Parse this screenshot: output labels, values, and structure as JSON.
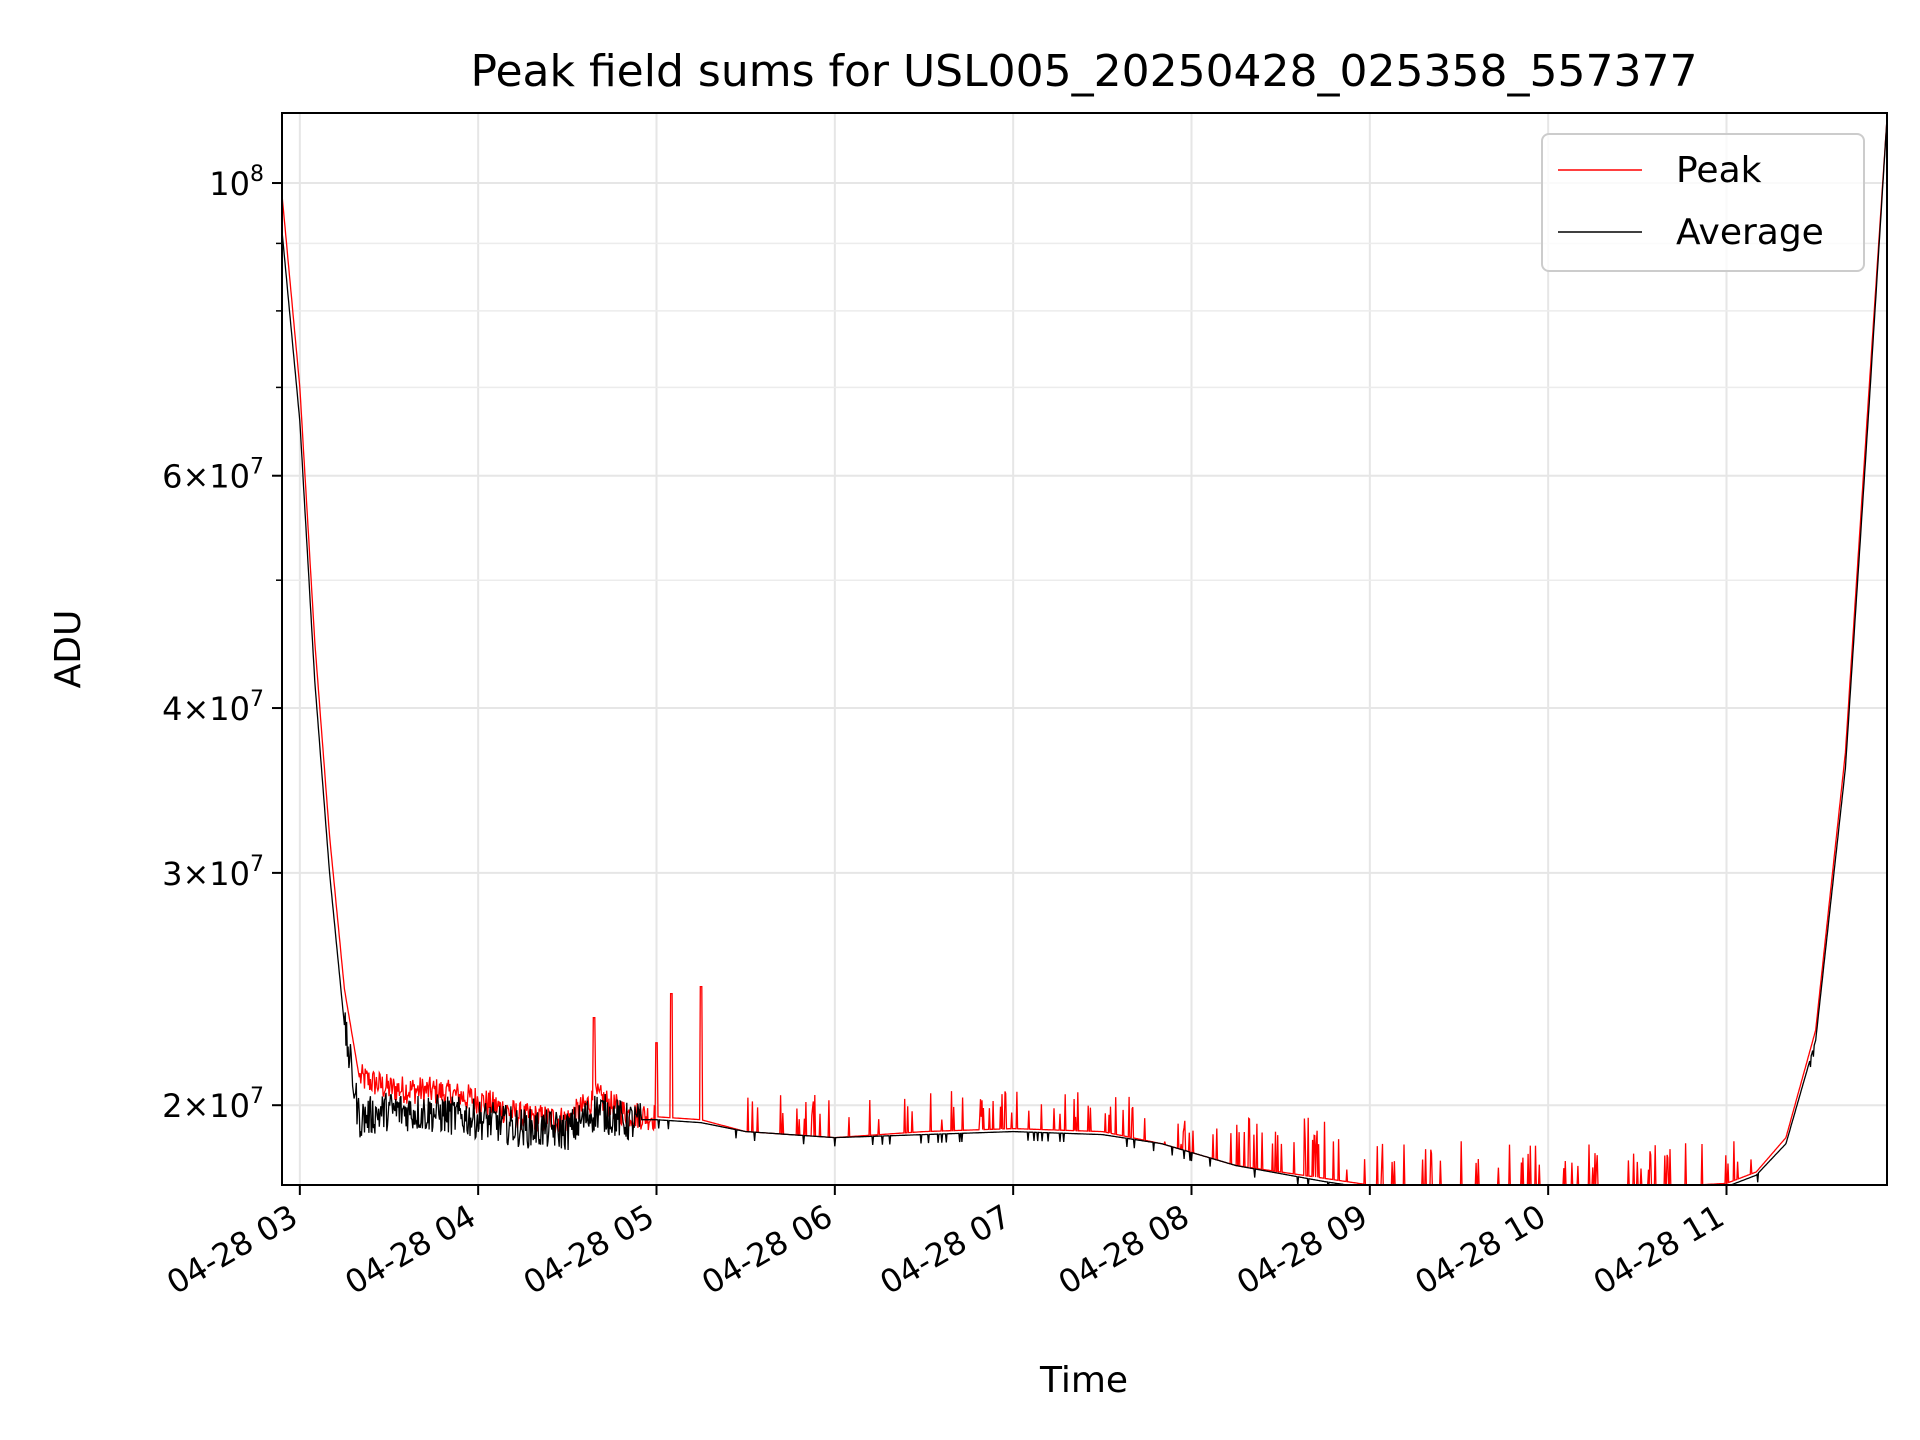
{
  "chart_data": {
    "type": "line",
    "title": "Peak field sums for USL005_20250428_025358_557377",
    "xlabel": "Time",
    "ylabel": "ADU",
    "yscale": "log",
    "grid": true,
    "legend_position": "top-right",
    "xlim": [
      "04-28 02:54",
      "04-28 11:54"
    ],
    "ylim": [
      17400000,
      113000000
    ],
    "x_ticks": [
      "04-28 03",
      "04-28 04",
      "04-28 05",
      "04-28 06",
      "04-28 07",
      "04-28 08",
      "04-28 09",
      "04-28 10",
      "04-28 11"
    ],
    "y_ticks": [
      {
        "value": 100000000,
        "mantissa": "",
        "exponent": "8"
      },
      {
        "value": 60000000,
        "mantissa": "6",
        "exponent": "7"
      },
      {
        "value": 40000000,
        "mantissa": "4",
        "exponent": "7"
      },
      {
        "value": 30000000,
        "mantissa": "3",
        "exponent": "7"
      },
      {
        "value": 20000000,
        "mantissa": "2",
        "exponent": "7"
      }
    ],
    "minor_y_ticks": [
      50000000,
      70000000,
      80000000,
      90000000
    ],
    "series": [
      {
        "name": "Peak",
        "color": "#ff0000",
        "x": [
          "04-28 02:54",
          "04-28 03:00",
          "04-28 03:05",
          "04-28 03:10",
          "04-28 03:15",
          "04-28 03:20",
          "04-28 03:30",
          "04-28 03:45",
          "04-28 04:00",
          "04-28 04:15",
          "04-28 04:30",
          "04-28 04:40",
          "04-28 04:50",
          "04-28 05:00",
          "04-28 05:15",
          "04-28 05:30",
          "04-28 06:00",
          "04-28 06:30",
          "04-28 07:00",
          "04-28 07:30",
          "04-28 07:50",
          "04-28 08:15",
          "04-28 08:45",
          "04-28 09:00",
          "04-28 09:30",
          "04-28 10:00",
          "04-28 10:30",
          "04-28 10:50",
          "04-28 11:00",
          "04-28 11:10",
          "04-28 11:20",
          "04-28 11:30",
          "04-28 11:40",
          "04-28 11:48",
          "04-28 11:54"
        ],
        "values": [
          98000000,
          70000000,
          45000000,
          32000000,
          24500000,
          21000000,
          20600000,
          20500000,
          20200000,
          19600000,
          19500000,
          20300000,
          19700000,
          19600000,
          19500000,
          19100000,
          18900000,
          19100000,
          19200000,
          19100000,
          18700000,
          18000000,
          17600000,
          17400000,
          17400000,
          17400000,
          17400000,
          17400000,
          17450000,
          17800000,
          18900000,
          22800000,
          37000000,
          70000000,
          112000000
        ],
        "spikes": [
          {
            "x": "04-28 04:39",
            "y": 23300000
          },
          {
            "x": "04-28 05:00",
            "y": 22300000
          },
          {
            "x": "04-28 05:05",
            "y": 24300000
          },
          {
            "x": "04-28 05:15",
            "y": 24600000
          }
        ],
        "spike_envelope": [
          {
            "from": "04-28 05:30",
            "to": "04-28 07:50",
            "y": 20500000
          },
          {
            "from": "04-28 07:50",
            "to": "04-28 08:50",
            "y": 19600000
          },
          {
            "from": "04-28 08:50",
            "to": "04-28 11:10",
            "y": 18800000
          }
        ]
      },
      {
        "name": "Average",
        "color": "#000000",
        "x": [
          "04-28 02:54",
          "04-28 03:00",
          "04-28 03:05",
          "04-28 03:10",
          "04-28 03:15",
          "04-28 03:20",
          "04-28 03:30",
          "04-28 03:45",
          "04-28 04:00",
          "04-28 04:15",
          "04-28 04:30",
          "04-28 04:40",
          "04-28 04:50",
          "04-28 05:00",
          "04-28 05:15",
          "04-28 05:30",
          "04-28 06:00",
          "04-28 06:30",
          "04-28 07:00",
          "04-28 07:30",
          "04-28 07:50",
          "04-28 08:15",
          "04-28 08:45",
          "04-28 09:00",
          "04-28 09:30",
          "04-28 10:00",
          "04-28 10:30",
          "04-28 10:50",
          "04-28 11:00",
          "04-28 11:10",
          "04-28 11:20",
          "04-28 11:30",
          "04-28 11:40",
          "04-28 11:48",
          "04-28 11:54"
        ],
        "values": [
          92000000,
          66000000,
          42000000,
          30000000,
          23000000,
          19600000,
          19900000,
          19800000,
          19600000,
          19300000,
          19200000,
          19900000,
          19500000,
          19500000,
          19400000,
          19100000,
          18900000,
          19000000,
          19100000,
          19000000,
          18700000,
          18000000,
          17500000,
          17300000,
          17300000,
          17300000,
          17300000,
          17300000,
          17350000,
          17700000,
          18700000,
          22400000,
          36000000,
          68000000,
          112000000
        ]
      }
    ]
  }
}
